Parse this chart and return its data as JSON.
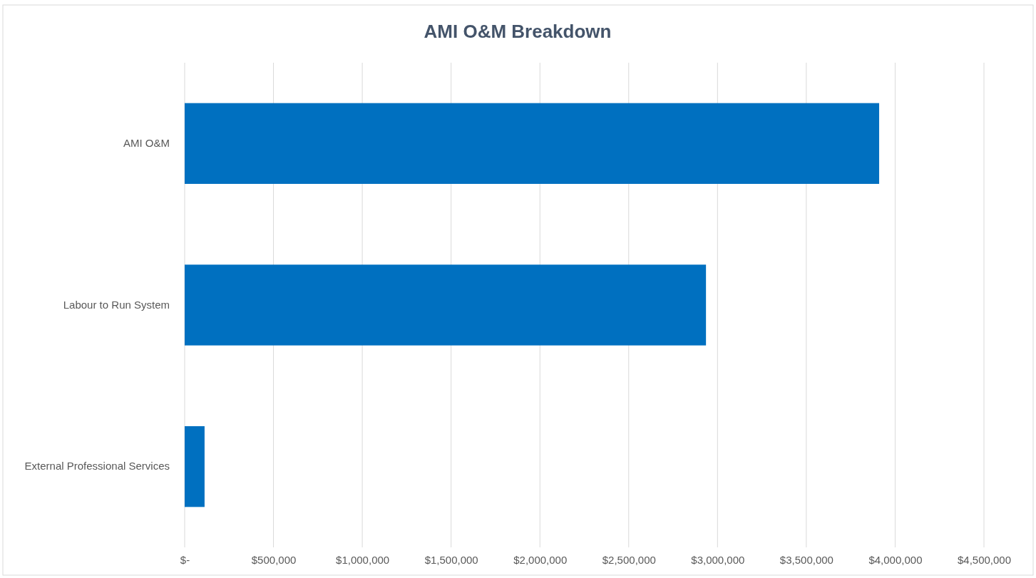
{
  "chart_data": {
    "type": "bar",
    "orientation": "horizontal",
    "title": "AMI O&M Breakdown",
    "categories": [
      "AMI O&M",
      "Labour to Run System",
      "External Professional Services"
    ],
    "values": [
      3910000,
      2935000,
      112000
    ],
    "color": "#0070c0",
    "xlim": [
      0,
      4500000
    ],
    "xticks": [
      {
        "value": 0,
        "label": "$-"
      },
      {
        "value": 500000,
        "label": "$500,000"
      },
      {
        "value": 1000000,
        "label": "$1,000,000"
      },
      {
        "value": 1500000,
        "label": "$1,500,000"
      },
      {
        "value": 2000000,
        "label": "$2,000,000"
      },
      {
        "value": 2500000,
        "label": "$2,500,000"
      },
      {
        "value": 3000000,
        "label": "$3,000,000"
      },
      {
        "value": 3500000,
        "label": "$3,500,000"
      },
      {
        "value": 4000000,
        "label": "$4,000,000"
      },
      {
        "value": 4500000,
        "label": "$4,500,000"
      }
    ],
    "grid": "x"
  }
}
